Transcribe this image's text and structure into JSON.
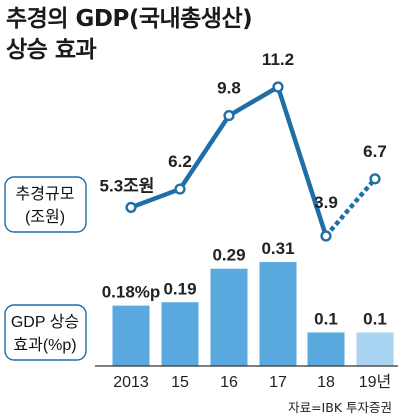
{
  "title": {
    "line1": "추경의 GDP(국내총생산)",
    "line2": "상승 효과"
  },
  "source": "자료=IBK 투자증권",
  "colors": {
    "line": "#1f6fa6",
    "bar": "#5aaadf",
    "bar_estimate": "#a8d4f2",
    "axis": "#333333",
    "label_box_border": "#1f6fa6"
  },
  "chart_data": [
    {
      "type": "line",
      "label_box": [
        "추경규모",
        "(조원)"
      ],
      "x": [
        "2013",
        "15",
        "16",
        "17",
        "18",
        "19년"
      ],
      "values": [
        5.3,
        6.2,
        9.8,
        11.2,
        3.9,
        6.7
      ],
      "value_labels": [
        "5.3조원",
        "6.2",
        "9.8",
        "11.2",
        "3.9",
        "6.7"
      ],
      "dashed_last_segment": true
    },
    {
      "type": "bar",
      "label_box": [
        "GDP 상승",
        "효과(%p)"
      ],
      "categories": [
        "2013",
        "15",
        "16",
        "17",
        "18",
        "19년"
      ],
      "values": [
        0.18,
        0.19,
        0.29,
        0.31,
        0.1,
        0.1
      ],
      "value_labels": [
        "0.18%p",
        "0.19",
        "0.29",
        "0.31",
        "0.1",
        "0.1"
      ],
      "estimate_last": true
    }
  ]
}
